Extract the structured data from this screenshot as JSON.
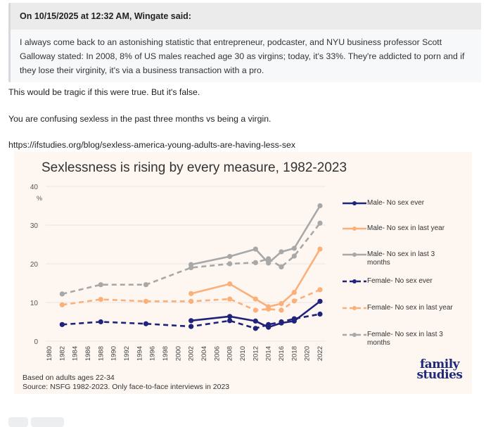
{
  "quote": {
    "header": "On 10/15/2025 at 12:32 AM, Wingate said:",
    "body": "I always come back to an astonishing statistic that entrepreneur, podcaster, and NYU business professor Scott Galloway stated: In 2008, 8% of US males reached age 30 as virgins; today, it's 33%. They're addicted to porn and if they lose their virginity, it's via a business transaction with a pro."
  },
  "reply": {
    "line1": "This would be tragic if this were true.  But it's false.",
    "line2": "You are confusing sexless in the past three months vs being a virgin.",
    "link": "https://ifstudies.org/blog/sexless-america-young-adults-are-having-less-sex"
  },
  "chart_footnote": {
    "line1": "Based on adults ages 22-34",
    "line2": "Source: NSFG 1982-2023. Only face-to-face interviews in 2023"
  },
  "logo": {
    "line1": "family",
    "line2": "studies"
  },
  "colors": {
    "navy": "#1f237a",
    "orange": "#fbb07a",
    "gray": "#a8a8a8",
    "background": "#fdf6f1"
  },
  "chart_data": {
    "type": "line",
    "title": "Sexlessness is rising by every measure, 1982-2023",
    "xlabel": "",
    "ylabel": "%",
    "ylim": [
      0,
      40
    ],
    "yticks": [
      0,
      10,
      20,
      30,
      40
    ],
    "xlim": [
      1980,
      2022
    ],
    "xticks": [
      1980,
      1982,
      1984,
      1986,
      1988,
      1990,
      1992,
      1994,
      1996,
      1998,
      2000,
      2002,
      2004,
      2006,
      2008,
      2010,
      2012,
      2014,
      2016,
      2018,
      2020,
      2022
    ],
    "grid": true,
    "legend_position": "right",
    "series": [
      {
        "name": "Male-  No sex ever",
        "color": "#1f237a",
        "dashed": false,
        "x": [
          2002,
          2008,
          2012,
          2014,
          2016,
          2018,
          2022
        ],
        "values": [
          5.3,
          6.4,
          5.2,
          3.6,
          4.7,
          5.2,
          10.3
        ]
      },
      {
        "name": "Male-  No sex in last year",
        "color": "#fbb07a",
        "dashed": false,
        "x": [
          2002,
          2008,
          2012,
          2014,
          2016,
          2018,
          2022
        ],
        "values": [
          12.3,
          14.8,
          10.9,
          8.9,
          9.7,
          12.6,
          23.8
        ]
      },
      {
        "name": "Male-  No sex in last 3 months",
        "color": "#a8a8a8",
        "dashed": false,
        "x": [
          2002,
          2008,
          2012,
          2014,
          2016,
          2018,
          2022
        ],
        "values": [
          19.8,
          21.9,
          23.8,
          20.2,
          23.1,
          24.0,
          35.0
        ]
      },
      {
        "name": "Female-  No sex ever",
        "color": "#1f237a",
        "dashed": true,
        "x": [
          1982,
          1988,
          1995,
          2002,
          2008,
          2012,
          2014,
          2016,
          2018,
          2022
        ],
        "values": [
          4.3,
          5.0,
          4.5,
          3.8,
          5.3,
          3.3,
          4.3,
          5.0,
          5.8,
          7.0
        ]
      },
      {
        "name": "Female-  No sex in last year",
        "color": "#fbb07a",
        "dashed": true,
        "x": [
          1982,
          1988,
          1995,
          2002,
          2008,
          2012,
          2014,
          2016,
          2018,
          2022
        ],
        "values": [
          9.4,
          10.8,
          10.3,
          10.3,
          10.9,
          8.0,
          8.3,
          8.0,
          10.4,
          13.3
        ]
      },
      {
        "name": "Female-  No sex in last 3 months",
        "color": "#a8a8a8",
        "dashed": true,
        "x": [
          1982,
          1988,
          1995,
          2002,
          2008,
          2012,
          2014,
          2016,
          2018,
          2022
        ],
        "values": [
          12.2,
          14.6,
          14.6,
          19.0,
          20.0,
          20.3,
          21.3,
          19.2,
          22.0,
          30.5
        ]
      }
    ],
    "legend": [
      {
        "line1": "Male-  No sex ever",
        "line2": ""
      },
      {
        "line1": "Male-  No sex in last year",
        "line2": ""
      },
      {
        "line1": "Male-  No sex in last 3",
        "line2": "months"
      },
      {
        "line1": "Female-  No sex ever",
        "line2": ""
      },
      {
        "line1": "Female-  No sex in last year",
        "line2": ""
      },
      {
        "line1": "Female-  No sex in last 3",
        "line2": "months"
      }
    ]
  }
}
